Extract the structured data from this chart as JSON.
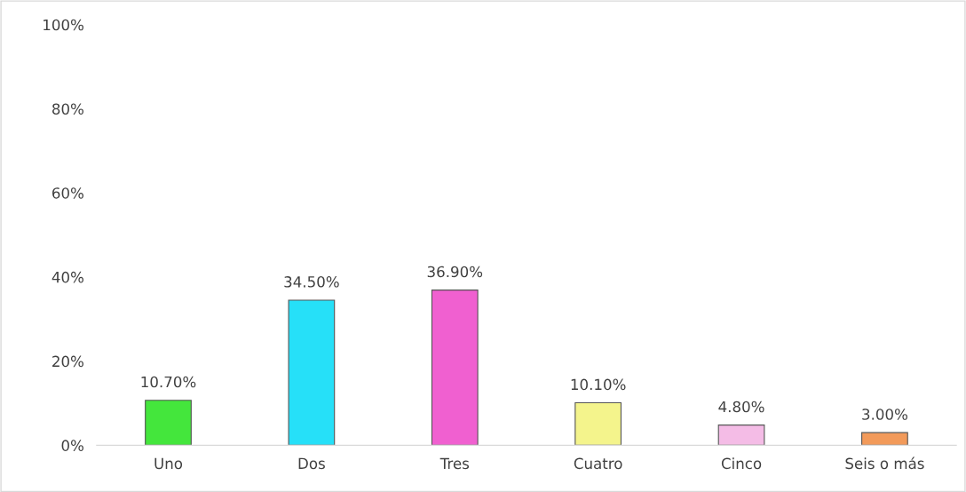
{
  "chart_data": {
    "type": "bar",
    "categories": [
      "Uno",
      "Dos",
      "Tres",
      "Cuatro",
      "Cinco",
      "Seis o más"
    ],
    "values": [
      10.7,
      34.5,
      36.9,
      10.1,
      4.8,
      3.0
    ],
    "colors": [
      "#44e63c",
      "#26e0f8",
      "#f060d0",
      "#f4f48c",
      "#f4bce6",
      "#f29a5a"
    ],
    "value_labels": [
      "10.70%",
      "34.50%",
      "36.90%",
      "10.10%",
      "4.80%",
      "3.00%"
    ],
    "ylim": [
      0,
      100
    ],
    "yticks": [
      {
        "value": 0,
        "label": "0%"
      },
      {
        "value": 20,
        "label": "20%"
      },
      {
        "value": 40,
        "label": "40%"
      },
      {
        "value": 60,
        "label": "60%"
      },
      {
        "value": 80,
        "label": "80%"
      },
      {
        "value": 100,
        "label": "100%"
      }
    ],
    "grid": false
  }
}
